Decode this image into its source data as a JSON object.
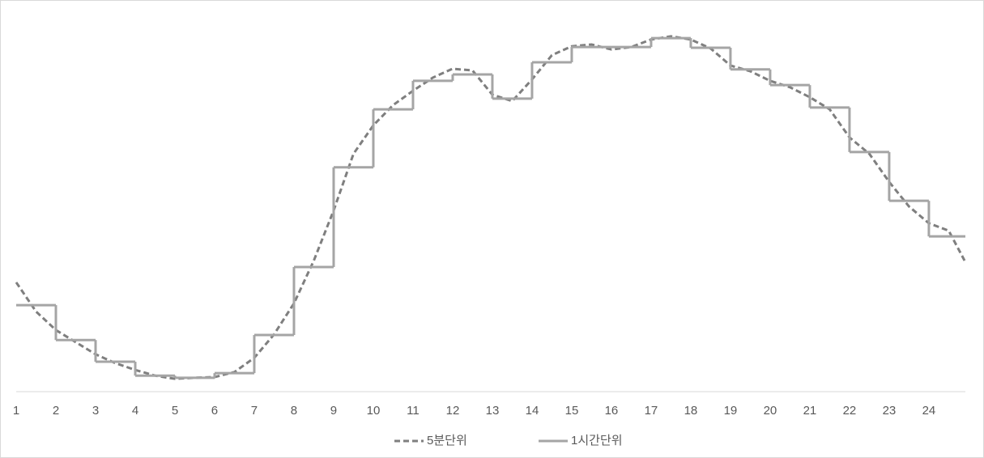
{
  "chart_data": {
    "type": "line",
    "xlim": [
      1,
      24.92
    ],
    "xticks": [
      1,
      2,
      3,
      4,
      5,
      6,
      7,
      8,
      9,
      10,
      11,
      12,
      13,
      14,
      15,
      16,
      17,
      18,
      19,
      20,
      21,
      22,
      23,
      24
    ],
    "ylim": [
      0,
      100
    ],
    "legend": "bottom",
    "series": [
      {
        "name": "5분단위",
        "color": "#7f7f7f",
        "style": "dashed",
        "x": [
          1,
          1.5,
          2,
          2.5,
          3,
          3.5,
          4,
          4.5,
          5,
          5.5,
          6,
          6.5,
          7,
          7.5,
          8,
          8.5,
          9,
          9.5,
          10,
          10.5,
          11,
          11.5,
          12,
          12.5,
          13,
          13.5,
          14,
          14.5,
          15,
          15.5,
          16,
          16.5,
          17,
          17.5,
          18,
          18.5,
          19,
          19.5,
          20,
          20.5,
          21,
          21.5,
          22,
          22.5,
          23,
          23.5,
          24,
          24.5,
          24.9
        ],
        "values": [
          30.7,
          22.5,
          17.3,
          13.9,
          10.5,
          8.0,
          6.1,
          4.5,
          3.6,
          3.9,
          4.1,
          5.5,
          9.5,
          16.1,
          24.8,
          36.8,
          50.9,
          66.8,
          74.8,
          80.5,
          84.5,
          88.2,
          90.7,
          90.2,
          83.4,
          81.6,
          87.7,
          94.5,
          97.0,
          97.5,
          96.1,
          96.8,
          98.9,
          99.8,
          98.9,
          96.4,
          91.6,
          90.0,
          87.3,
          85.5,
          82.7,
          79.3,
          71.4,
          66.8,
          58.9,
          52.0,
          47.3,
          45.2,
          36.8
        ]
      },
      {
        "name": "1시간단위",
        "color": "#a5a5a5",
        "style": "step",
        "x": [
          1,
          2,
          3,
          4,
          5,
          6,
          7,
          8,
          9,
          10,
          11,
          12,
          13,
          14,
          15,
          16,
          17,
          18,
          19,
          20,
          21,
          22,
          23,
          24
        ],
        "values": [
          24.3,
          14.5,
          8.4,
          4.5,
          3.9,
          5.2,
          15.9,
          35,
          63,
          79.3,
          87.3,
          89.1,
          82.3,
          92.5,
          96.8,
          96.8,
          99.3,
          96.6,
          90.5,
          86.1,
          79.8,
          67.3,
          53.6,
          43.6
        ]
      }
    ]
  }
}
